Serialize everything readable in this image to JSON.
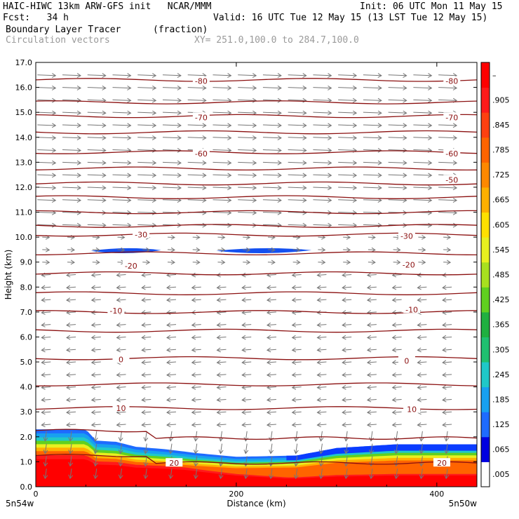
{
  "header": {
    "line1_left": "HAIC-HIWC 13km ARW-GFS init   NCAR/MMM",
    "line1_right": "Init: 06 UTC Mon 11 May 15",
    "line2_left": "Fcst:   34 h",
    "line2_right": "Valid: 16 UTC Tue 12 May 15 (13 LST Tue 12 May 15)",
    "line3_field": "Boundary Layer Tracer",
    "line3_units": "(fraction)",
    "line4_field": "Circulation vectors",
    "line4_xy": "XY= 251.0,100.0 to 284.7,100.0"
  },
  "chart_data": {
    "type": "heatmap",
    "xlabel": "Distance (km)",
    "ylabel": "Height (km)",
    "xlim": [
      0,
      440
    ],
    "ylim": [
      0,
      17
    ],
    "x_ticks": [
      "0",
      "200",
      "400"
    ],
    "y_ticks": [
      "0.0",
      "1.0",
      "2.0",
      "3.0",
      "4.0",
      "5.0",
      "6.0",
      "7.0",
      "8.0",
      "9.0",
      "10.0",
      "11.0",
      "12.0",
      "13.0",
      "14.0",
      "15.0",
      "16.0",
      "17.0"
    ],
    "x_end_labels": {
      "left": "5n54w",
      "right": "5n50w"
    },
    "colorbar_labels": [
      ".005",
      ".065",
      ".125",
      ".185",
      ".245",
      ".305",
      ".365",
      ".425",
      ".485",
      ".545",
      ".605",
      ".665",
      ".725",
      ".785",
      ".845",
      ".905",
      "–"
    ],
    "colorbar_colors": [
      "#ffffff",
      "#0000e0",
      "#1e6bff",
      "#18a0f0",
      "#20c8c8",
      "#20c070",
      "#20b040",
      "#60d020",
      "#a8e020",
      "#e8f020",
      "#ffe000",
      "#ffb000",
      "#ff8800",
      "#ff6400",
      "#ff4010",
      "#ff1a1a",
      "#ff0000"
    ],
    "contour_labels": [
      {
        "value": "-80",
        "x_km": 165,
        "y": 16.25
      },
      {
        "value": "-80",
        "x_km": 415,
        "y": 16.25
      },
      {
        "value": "-70",
        "x_km": 165,
        "y": 14.8
      },
      {
        "value": "-70",
        "x_km": 415,
        "y": 14.8
      },
      {
        "value": "-60",
        "x_km": 165,
        "y": 13.35
      },
      {
        "value": "-60",
        "x_km": 415,
        "y": 13.35
      },
      {
        "value": "-50",
        "x_km": 415,
        "y": 12.3
      },
      {
        "value": "-30",
        "x_km": 105,
        "y": 10.1
      },
      {
        "value": "-30",
        "x_km": 370,
        "y": 10.05
      },
      {
        "value": "-20",
        "x_km": 95,
        "y": 8.85
      },
      {
        "value": "-20",
        "x_km": 372,
        "y": 8.9
      },
      {
        "value": "-10",
        "x_km": 80,
        "y": 7.05
      },
      {
        "value": "-10",
        "x_km": 375,
        "y": 7.1
      },
      {
        "value": "0",
        "x_km": 85,
        "y": 5.1
      },
      {
        "value": "0",
        "x_km": 370,
        "y": 5.05
      },
      {
        "value": "10",
        "x_km": 85,
        "y": 3.15
      },
      {
        "value": "10",
        "x_km": 375,
        "y": 3.1
      },
      {
        "value": "20",
        "x_km": 138,
        "y": 0.95
      },
      {
        "value": "20",
        "x_km": 405,
        "y": 0.95
      }
    ],
    "contour_heights": [
      16.3,
      15.4,
      14.85,
      14.2,
      13.4,
      12.75,
      12.15,
      11.6,
      11.0,
      10.45,
      10.1,
      9.35,
      8.55,
      7.75,
      7.0,
      6.25,
      5.15,
      4.1,
      3.15,
      2.0,
      1.0
    ],
    "tracer_upper_patches": [
      {
        "x_km": [
          55,
          125
        ],
        "y": 9.45,
        "value": 0.07
      },
      {
        "x_km": [
          180,
          275
        ],
        "y": 9.45,
        "value": 0.07
      }
    ],
    "tracer_pbl_top_km": [
      {
        "x": 0,
        "top": 2.3
      },
      {
        "x": 50,
        "top": 2.3
      },
      {
        "x": 60,
        "top": 1.85
      },
      {
        "x": 80,
        "top": 1.8
      },
      {
        "x": 100,
        "top": 1.6
      },
      {
        "x": 130,
        "top": 1.5
      },
      {
        "x": 160,
        "top": 1.35
      },
      {
        "x": 200,
        "top": 1.2
      },
      {
        "x": 260,
        "top": 1.25
      },
      {
        "x": 300,
        "top": 1.55
      },
      {
        "x": 360,
        "top": 1.7
      },
      {
        "x": 440,
        "top": 1.7
      }
    ]
  }
}
